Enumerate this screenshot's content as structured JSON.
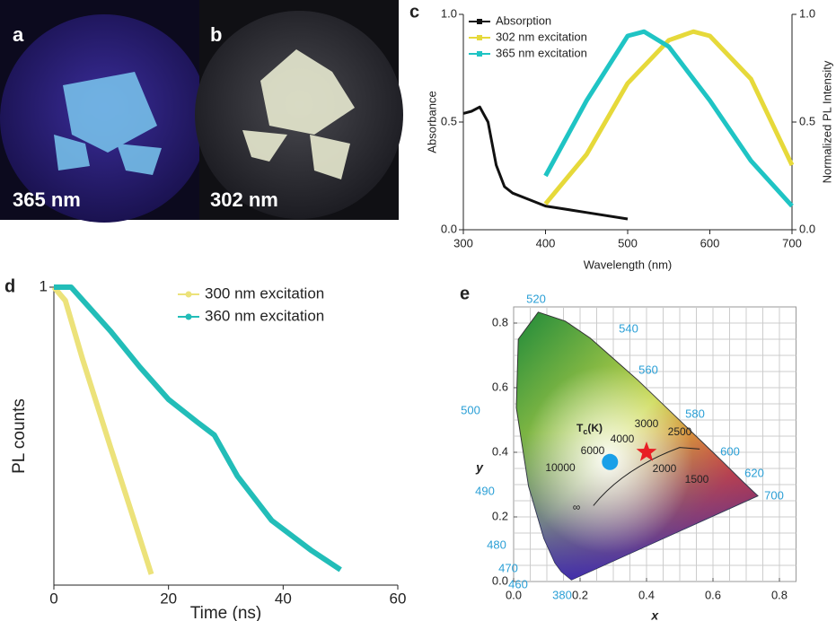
{
  "photos": [
    {
      "letter": "a",
      "label": "365 nm"
    },
    {
      "letter": "b",
      "label": "302 nm"
    }
  ],
  "chart_data": [
    {
      "type": "line",
      "panel": "c",
      "xlabel": "Wavelength (nm)",
      "ylabel": "Absorbance",
      "y2label": "Normalized PL Intensity",
      "xlim": [
        300,
        700
      ],
      "xticks": [
        300,
        400,
        500,
        600,
        700
      ],
      "ylim": [
        0,
        1
      ],
      "yticks": [
        {
          "value": 0,
          "label": "0.0"
        },
        {
          "value": 0.5,
          "label": "0.5"
        },
        {
          "value": 1,
          "label": "1.0"
        }
      ],
      "y2lim": [
        0,
        1
      ],
      "y2ticks": [
        {
          "value": 0,
          "label": "0.0"
        },
        {
          "value": 0.5,
          "label": "0.5"
        },
        {
          "value": 1,
          "label": "1.0"
        }
      ],
      "legend": "upper left",
      "series": [
        {
          "name": "Absorption",
          "color": "#111111",
          "x": [
            300,
            310,
            320,
            330,
            340,
            350,
            360,
            380,
            400,
            450,
            500
          ],
          "values": [
            0.54,
            0.55,
            0.57,
            0.5,
            0.3,
            0.2,
            0.17,
            0.14,
            0.11,
            0.08,
            0.05
          ]
        },
        {
          "name": "302 nm excitation",
          "color": "#e6d93a",
          "axis": "y2",
          "x": [
            400,
            450,
            500,
            550,
            580,
            600,
            650,
            700
          ],
          "values": [
            0.12,
            0.35,
            0.68,
            0.88,
            0.92,
            0.9,
            0.7,
            0.3
          ]
        },
        {
          "name": "365 nm excitation",
          "color": "#1fc4c4",
          "axis": "y2",
          "x": [
            400,
            450,
            500,
            520,
            550,
            600,
            650,
            700
          ],
          "values": [
            0.25,
            0.6,
            0.9,
            0.92,
            0.85,
            0.6,
            0.32,
            0.11
          ]
        }
      ]
    },
    {
      "type": "line",
      "panel": "d",
      "xlabel": "Time (ns)",
      "ylabel": "PL counts",
      "xlim": [
        0,
        60
      ],
      "xticks": [
        0,
        20,
        40,
        60
      ],
      "ylim": [
        0.0005,
        1
      ],
      "yscale": "log",
      "yticks": [
        1
      ],
      "legend": "upper right",
      "series": [
        {
          "name": "300 nm excitation",
          "color": "#ece27a",
          "x": [
            0,
            2,
            5,
            10,
            14,
            17
          ],
          "values": [
            1,
            0.71,
            0.16,
            0.016,
            0.0026,
            0.00066
          ]
        },
        {
          "name": "360 nm excitation",
          "color": "#22bdb8",
          "x": [
            0,
            3,
            10,
            15,
            20,
            25,
            28,
            32,
            38,
            45,
            50
          ],
          "values": [
            1,
            1,
            0.32,
            0.13,
            0.057,
            0.032,
            0.023,
            0.0081,
            0.0026,
            0.0012,
            0.00074
          ]
        }
      ]
    },
    {
      "type": "scatter",
      "panel": "e",
      "xlabel": "x",
      "ylabel": "y",
      "xlim": [
        0,
        0.85
      ],
      "ylim": [
        0,
        0.85
      ],
      "xticks": [
        {
          "value": 0,
          "label": "0.0"
        },
        {
          "value": 0.2,
          "label": "0.2"
        },
        {
          "value": 0.4,
          "label": "0.4"
        },
        {
          "value": 0.6,
          "label": "0.6"
        },
        {
          "value": 0.8,
          "label": "0.8"
        }
      ],
      "yticks": [
        {
          "value": 0,
          "label": "0.0"
        },
        {
          "value": 0.2,
          "label": "0.2"
        },
        {
          "value": 0.4,
          "label": "0.4"
        },
        {
          "value": 0.6,
          "label": "0.6"
        },
        {
          "value": 0.8,
          "label": "0.8"
        }
      ],
      "grid": true,
      "x": [
        0.29,
        0.4
      ],
      "values": [
        0.37,
        0.4
      ],
      "colors": [
        "#1aa0e8",
        "#e81e25"
      ],
      "markers": [
        "circle",
        "star"
      ],
      "wavelength_labels": [
        "520",
        "540",
        "560",
        "580",
        "600",
        "620",
        "700",
        "500",
        "490",
        "480",
        "470",
        "460",
        "380"
      ],
      "temperature_title": {
        "main": "T",
        "sub": "c",
        "unit": "(K)"
      },
      "temperature_labels": [
        "6000",
        "10000",
        "4000",
        "3000",
        "2500",
        "2000",
        "1500",
        "∞"
      ]
    }
  ]
}
